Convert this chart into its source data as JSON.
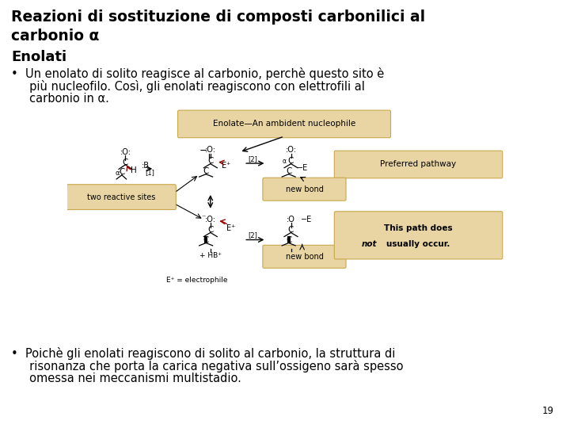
{
  "bg_color": "#ffffff",
  "title_line1": "Reazioni di sostituzione di composti carbonilici al",
  "title_line2": "carbonio α",
  "subtitle": "Enolati",
  "bullet1_line1": "•  Un enolato di solito reagisce al carbonio, perchè questo sito è",
  "bullet1_line2": "     più nucleofilo. Così, gli enolati reagiscono con elettrofili al",
  "bullet1_line3": "     carbonio in α.",
  "bullet2_line1": "•  Poichè gli enolati reagiscono di solito al carbonio, la struttura di",
  "bullet2_line2": "     risonanza che porta la carica negativa sull’ossigeno sarà spesso",
  "bullet2_line3": "     omessa nei meccanismi multistadio.",
  "page_number": "19",
  "title_fontsize": 13.5,
  "subtitle_fontsize": 13,
  "body_fontsize": 10.5,
  "text_color": "#000000",
  "diagram_box_color": "#e8d5a3",
  "diagram_box_edge": "#c8a84b"
}
